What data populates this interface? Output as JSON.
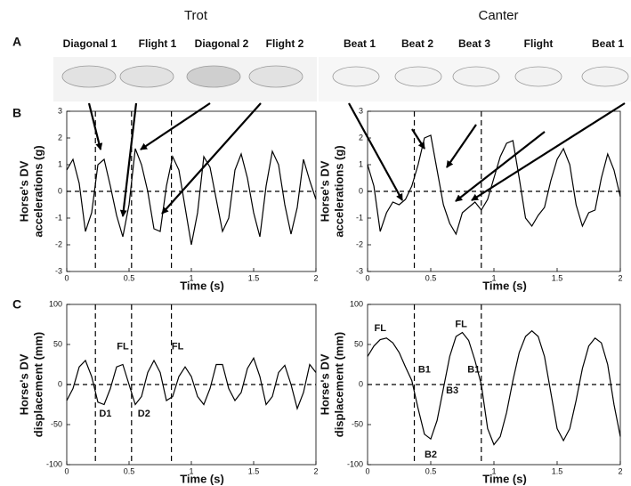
{
  "header": {
    "trot": "Trot",
    "canter": "Canter",
    "panels": [
      "A",
      "B",
      "C"
    ],
    "trot_phases": [
      "Diagonal 1",
      "Flight 1",
      "Diagonal 2",
      "Flight 2"
    ],
    "canter_phases": [
      "Beat 1",
      "Beat 2",
      "Beat 3",
      "Flight",
      "Beat 1"
    ]
  },
  "chart_data": [
    {
      "type": "line",
      "xlabel": "Time (s)",
      "ylabel": [
        "Horse's DV",
        "accelerations (g)"
      ],
      "color": "#000000",
      "xlim": [
        0,
        2
      ],
      "xticks": [
        0,
        0.5,
        1,
        1.5,
        2
      ],
      "ylim": [
        -3,
        3
      ],
      "yticks": [
        -3,
        -2,
        -1,
        0,
        1,
        2,
        3
      ],
      "hline": 0,
      "vlines": [
        0.23,
        0.52,
        0.84
      ],
      "x": [
        0,
        0.05,
        0.1,
        0.15,
        0.2,
        0.25,
        0.3,
        0.35,
        0.4,
        0.45,
        0.5,
        0.55,
        0.6,
        0.65,
        0.7,
        0.75,
        0.8,
        0.85,
        0.9,
        0.95,
        1,
        1.05,
        1.1,
        1.15,
        1.2,
        1.25,
        1.3,
        1.35,
        1.4,
        1.45,
        1.5,
        1.55,
        1.6,
        1.65,
        1.7,
        1.75,
        1.8,
        1.85,
        1.9,
        1.95,
        2
      ],
      "values": [
        0.8,
        1.2,
        0.3,
        -1.5,
        -0.8,
        1.0,
        1.2,
        0.2,
        -0.9,
        -1.7,
        -0.5,
        1.6,
        1.0,
        0.0,
        -1.4,
        -1.5,
        0.2,
        1.3,
        0.8,
        -0.6,
        -2.0,
        -0.8,
        1.3,
        0.9,
        -0.3,
        -1.5,
        -1.0,
        0.8,
        1.4,
        0.5,
        -0.8,
        -1.7,
        0.2,
        1.5,
        1.0,
        -0.5,
        -1.6,
        -0.6,
        1.2,
        0.4,
        -0.3
      ]
    },
    {
      "type": "line",
      "xlabel": "Time (s)",
      "ylabel": [
        "Horse's DV",
        "accelerations (g)"
      ],
      "color": "#000000",
      "xlim": [
        0,
        2
      ],
      "xticks": [
        0,
        0.5,
        1,
        1.5,
        2
      ],
      "ylim": [
        -3,
        3
      ],
      "yticks": [
        -3,
        -2,
        -1,
        0,
        1,
        2,
        3
      ],
      "hline": 0,
      "vlines": [
        0.37,
        0.9
      ],
      "x": [
        0,
        0.05,
        0.1,
        0.15,
        0.2,
        0.25,
        0.3,
        0.35,
        0.4,
        0.45,
        0.5,
        0.55,
        0.6,
        0.65,
        0.7,
        0.75,
        0.8,
        0.85,
        0.9,
        0.95,
        1,
        1.05,
        1.1,
        1.15,
        1.2,
        1.25,
        1.3,
        1.35,
        1.4,
        1.45,
        1.5,
        1.55,
        1.6,
        1.65,
        1.7,
        1.75,
        1.8,
        1.85,
        1.9,
        1.95,
        2
      ],
      "values": [
        1.0,
        0.2,
        -1.5,
        -0.8,
        -0.4,
        -0.5,
        -0.3,
        0.2,
        1.0,
        2.0,
        2.1,
        0.8,
        -0.5,
        -1.2,
        -1.6,
        -0.8,
        -0.6,
        -0.4,
        -0.7,
        -0.3,
        0.5,
        1.3,
        1.8,
        1.9,
        0.5,
        -1.0,
        -1.3,
        -0.9,
        -0.6,
        0.4,
        1.2,
        1.6,
        1.0,
        -0.5,
        -1.3,
        -0.8,
        -0.7,
        0.5,
        1.4,
        0.8,
        -0.2
      ]
    },
    {
      "type": "line",
      "xlabel": "Time (s)",
      "ylabel": [
        "Horse's DV",
        "displacement (mm)"
      ],
      "color": "#000000",
      "xlim": [
        0,
        2
      ],
      "xticks": [
        0,
        0.5,
        1,
        1.5,
        2
      ],
      "ylim": [
        -100,
        100
      ],
      "yticks": [
        -100,
        -50,
        0,
        50,
        100
      ],
      "hline": 0,
      "vlines": [
        0.23,
        0.52,
        0.84
      ],
      "annotations": [
        {
          "text": "FL",
          "x": 0.45,
          "y": 47
        },
        {
          "text": "FL",
          "x": 0.89,
          "y": 47
        },
        {
          "text": "D1",
          "x": 0.31,
          "y": -37
        },
        {
          "text": "D2",
          "x": 0.62,
          "y": -37
        }
      ],
      "x": [
        0,
        0.05,
        0.1,
        0.15,
        0.2,
        0.25,
        0.3,
        0.35,
        0.4,
        0.45,
        0.5,
        0.55,
        0.6,
        0.65,
        0.7,
        0.75,
        0.8,
        0.85,
        0.9,
        0.95,
        1,
        1.05,
        1.1,
        1.15,
        1.2,
        1.25,
        1.3,
        1.35,
        1.4,
        1.45,
        1.5,
        1.55,
        1.6,
        1.65,
        1.7,
        1.75,
        1.8,
        1.85,
        1.9,
        1.95,
        2
      ],
      "values": [
        -20,
        -5,
        22,
        30,
        10,
        -22,
        -25,
        -5,
        22,
        25,
        0,
        -25,
        -15,
        15,
        30,
        15,
        -20,
        -15,
        10,
        22,
        10,
        -15,
        -25,
        -5,
        25,
        25,
        -5,
        -20,
        -10,
        20,
        33,
        10,
        -25,
        -15,
        15,
        24,
        0,
        -30,
        -10,
        25,
        15
      ]
    },
    {
      "type": "line",
      "xlabel": "Time (s)",
      "ylabel": [
        "Horse's DV",
        "displacement (mm)"
      ],
      "color": "#000000",
      "xlim": [
        0,
        2
      ],
      "xticks": [
        0,
        0.5,
        1,
        1.5,
        2
      ],
      "ylim": [
        -100,
        100
      ],
      "yticks": [
        -100,
        -50,
        0,
        50,
        100
      ],
      "hline": 0,
      "vlines": [
        0.37,
        0.9
      ],
      "annotations": [
        {
          "text": "FL",
          "x": 0.1,
          "y": 70
        },
        {
          "text": "FL",
          "x": 0.74,
          "y": 75
        },
        {
          "text": "B1",
          "x": 0.45,
          "y": 18
        },
        {
          "text": "B1",
          "x": 0.84,
          "y": 18
        },
        {
          "text": "B2",
          "x": 0.5,
          "y": -88
        },
        {
          "text": "B3",
          "x": 0.67,
          "y": -8
        }
      ],
      "x": [
        0,
        0.05,
        0.1,
        0.15,
        0.2,
        0.25,
        0.3,
        0.35,
        0.4,
        0.45,
        0.5,
        0.55,
        0.6,
        0.65,
        0.7,
        0.75,
        0.8,
        0.85,
        0.9,
        0.95,
        1,
        1.05,
        1.1,
        1.15,
        1.2,
        1.25,
        1.3,
        1.35,
        1.4,
        1.45,
        1.5,
        1.55,
        1.6,
        1.65,
        1.7,
        1.75,
        1.8,
        1.85,
        1.9,
        1.95,
        2
      ],
      "values": [
        35,
        48,
        56,
        58,
        52,
        40,
        22,
        5,
        -30,
        -62,
        -68,
        -45,
        -5,
        35,
        60,
        65,
        55,
        30,
        0,
        -55,
        -75,
        -65,
        -35,
        5,
        40,
        60,
        67,
        60,
        35,
        -10,
        -55,
        -70,
        -55,
        -20,
        20,
        48,
        58,
        52,
        25,
        -25,
        -65
      ]
    }
  ]
}
